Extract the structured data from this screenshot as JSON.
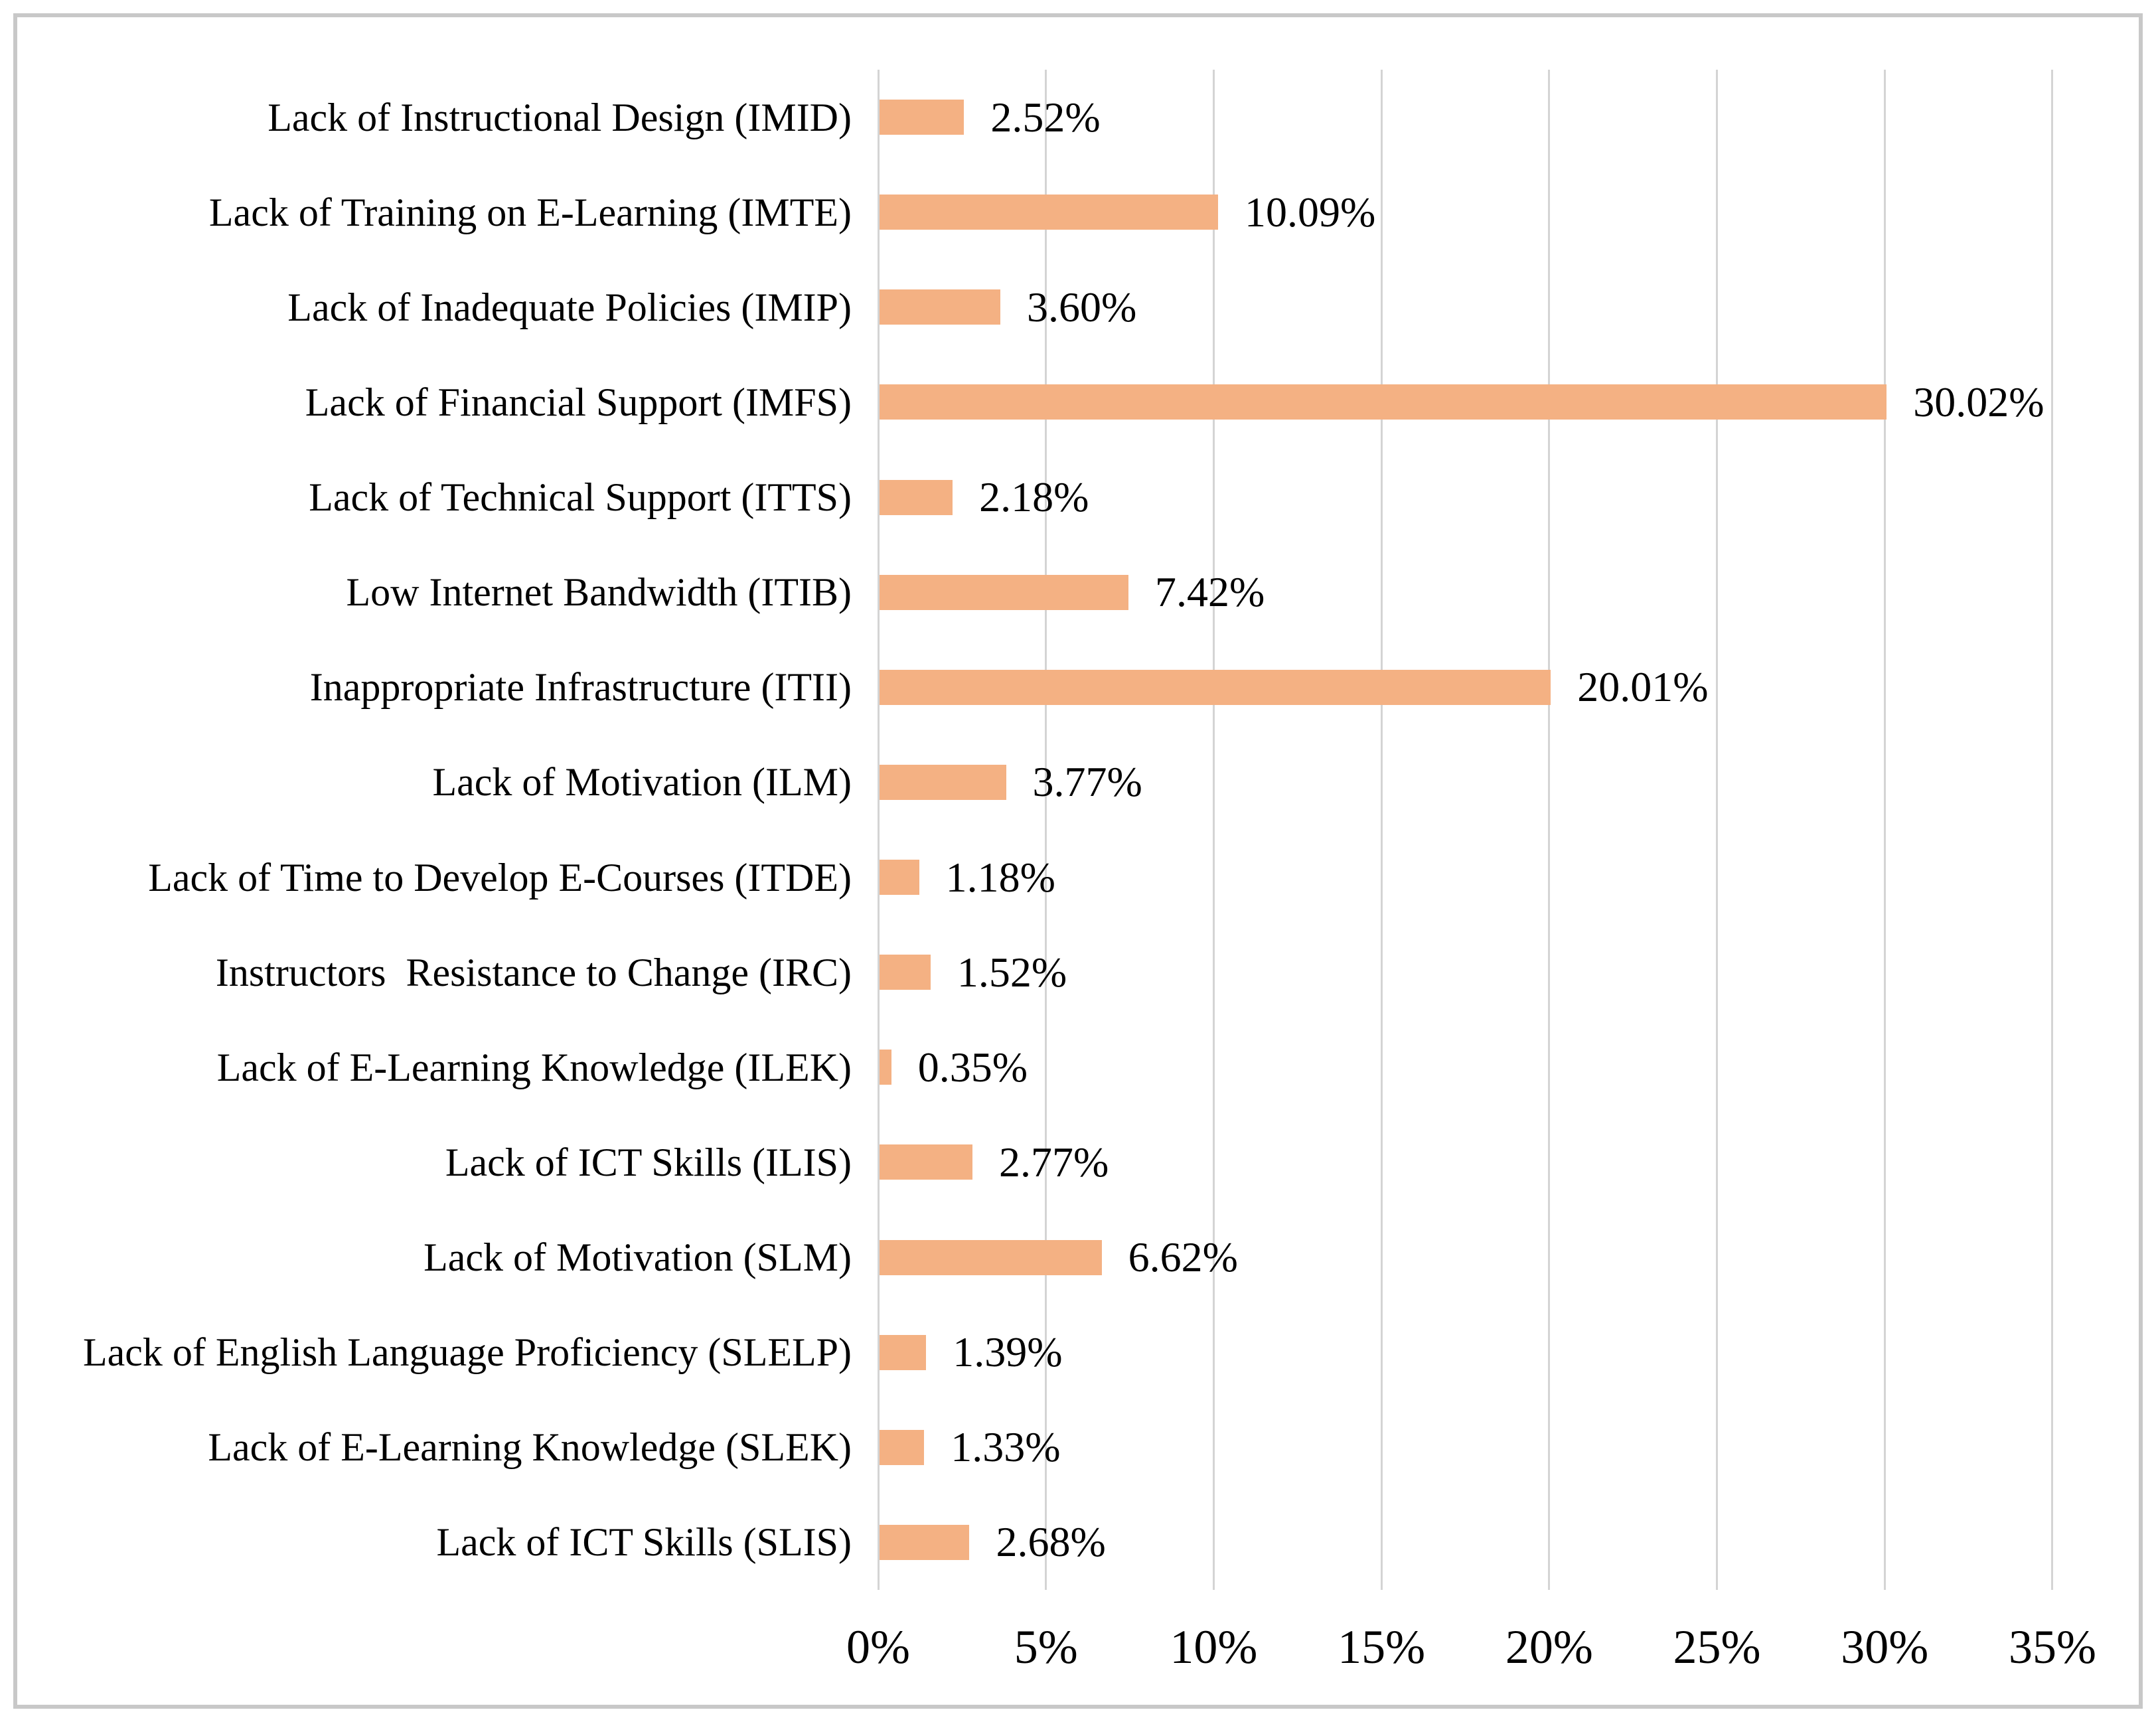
{
  "chart_data": {
    "type": "bar",
    "orientation": "horizontal",
    "title": "",
    "xlabel": "",
    "ylabel": "",
    "categories": [
      "Lack of Instructional Design (IMID)",
      "Lack of Training on E-Learning (IMTE)",
      "Lack of Inadequate Policies (IMIP)",
      "Lack of Financial Support (IMFS)",
      "Lack of Technical Support (ITTS)",
      "Low Internet Bandwidth (ITIB)",
      "Inappropriate Infrastructure (ITII)",
      "Lack of Motivation (ILM)",
      "Lack of Time to Develop E-Courses (ITDE)",
      "Instructors  Resistance to Change (IRC)",
      "Lack of E-Learning Knowledge (ILEK)",
      "Lack of ICT Skills (ILIS)",
      "Lack of Motivation (SLM)",
      "Lack of English Language Proficiency (SLELP)",
      "Lack of E-Learning Knowledge (SLEK)",
      "Lack of ICT Skills (SLIS)"
    ],
    "values": [
      2.52,
      10.09,
      3.6,
      30.02,
      2.18,
      7.42,
      20.01,
      3.77,
      1.18,
      1.52,
      0.35,
      2.77,
      6.62,
      1.39,
      1.33,
      2.68
    ],
    "value_labels": [
      "2.52%",
      "10.09%",
      "3.60%",
      "30.02%",
      "2.18%",
      "7.42%",
      "20.01%",
      "3.77%",
      "1.18%",
      "1.52%",
      "0.35%",
      "2.77%",
      "6.62%",
      "1.39%",
      "1.33%",
      "2.68%"
    ],
    "x_ticks": [
      "0%",
      "5%",
      "10%",
      "15%",
      "20%",
      "25%",
      "30%",
      "35%"
    ],
    "x_tick_values": [
      0,
      5,
      10,
      15,
      20,
      25,
      30,
      35
    ],
    "xlim": [
      0,
      35
    ],
    "grid": true,
    "legend": false,
    "bar_color": "#F4B183",
    "gridline_color": "#D4D4D4",
    "frame_border_color": "#C8C8C8",
    "text_color": "#000000"
  }
}
